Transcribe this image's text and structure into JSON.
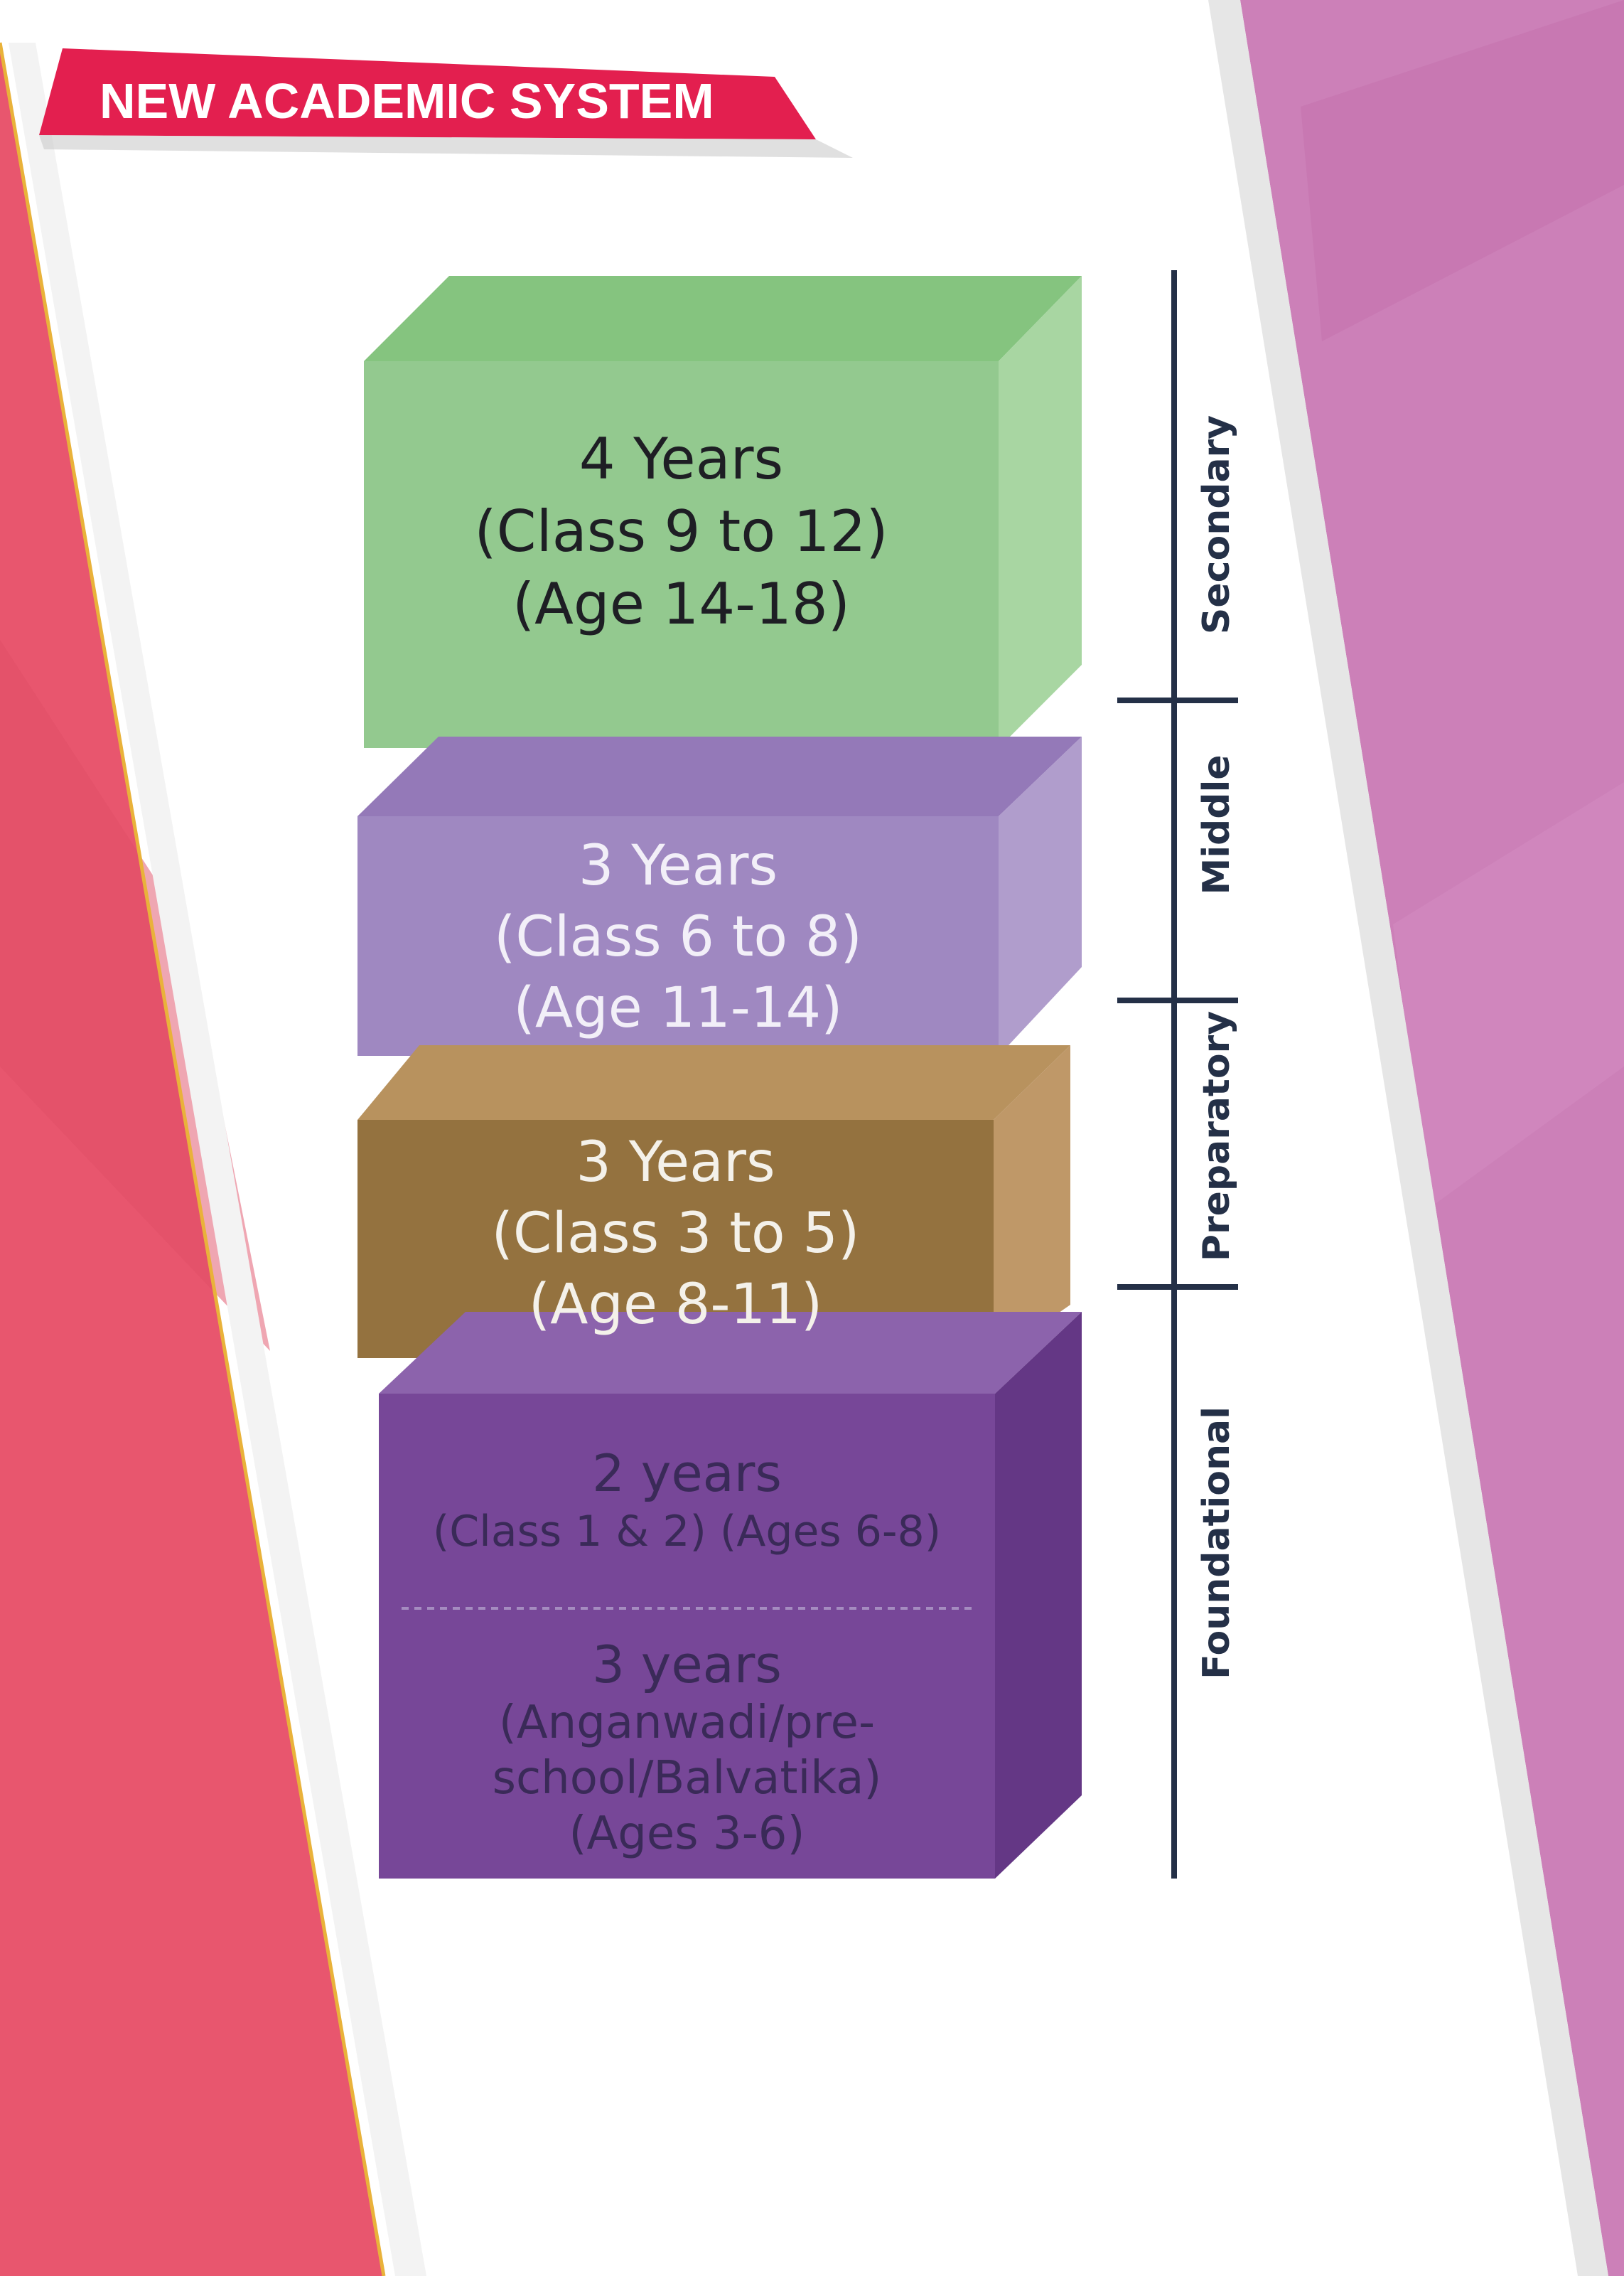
{
  "banner": {
    "title": "NEW ACADEMIC SYSTEM"
  },
  "colors": {
    "left_band": "#e8566e",
    "right_band": "#cc80b8",
    "banner": "#e31f4f",
    "green_block": "#93c98f",
    "violet_block": "#9f88c1",
    "brown_block": "#94723f",
    "purple_block": "#774798",
    "axis_line": "#243047"
  },
  "blocks": {
    "secondary": {
      "years": "4 Years",
      "classes": "(Class 9 to 12)",
      "ages": "(Age 14-18)"
    },
    "middle": {
      "years": "3  Years",
      "classes": "(Class 6 to 8)",
      "ages": "(Age 11-14)"
    },
    "preparatory": {
      "years": "3 Years",
      "classes": "(Class 3 to 5)",
      "ages": "(Age 8-11)"
    },
    "foundational": {
      "upper": {
        "years": "2 years",
        "detail": "(Class 1 & 2)  (Ages 6-8)"
      },
      "lower": {
        "years": "3 years",
        "line1": "(Anganwadi/pre-",
        "line2": "school/Balvatika)",
        "ages": "(Ages 3-6)"
      }
    }
  },
  "stage_labels": {
    "secondary": "Secondary",
    "middle": "Middle",
    "preparatory": "Preparatory",
    "foundational": "Foundational"
  }
}
